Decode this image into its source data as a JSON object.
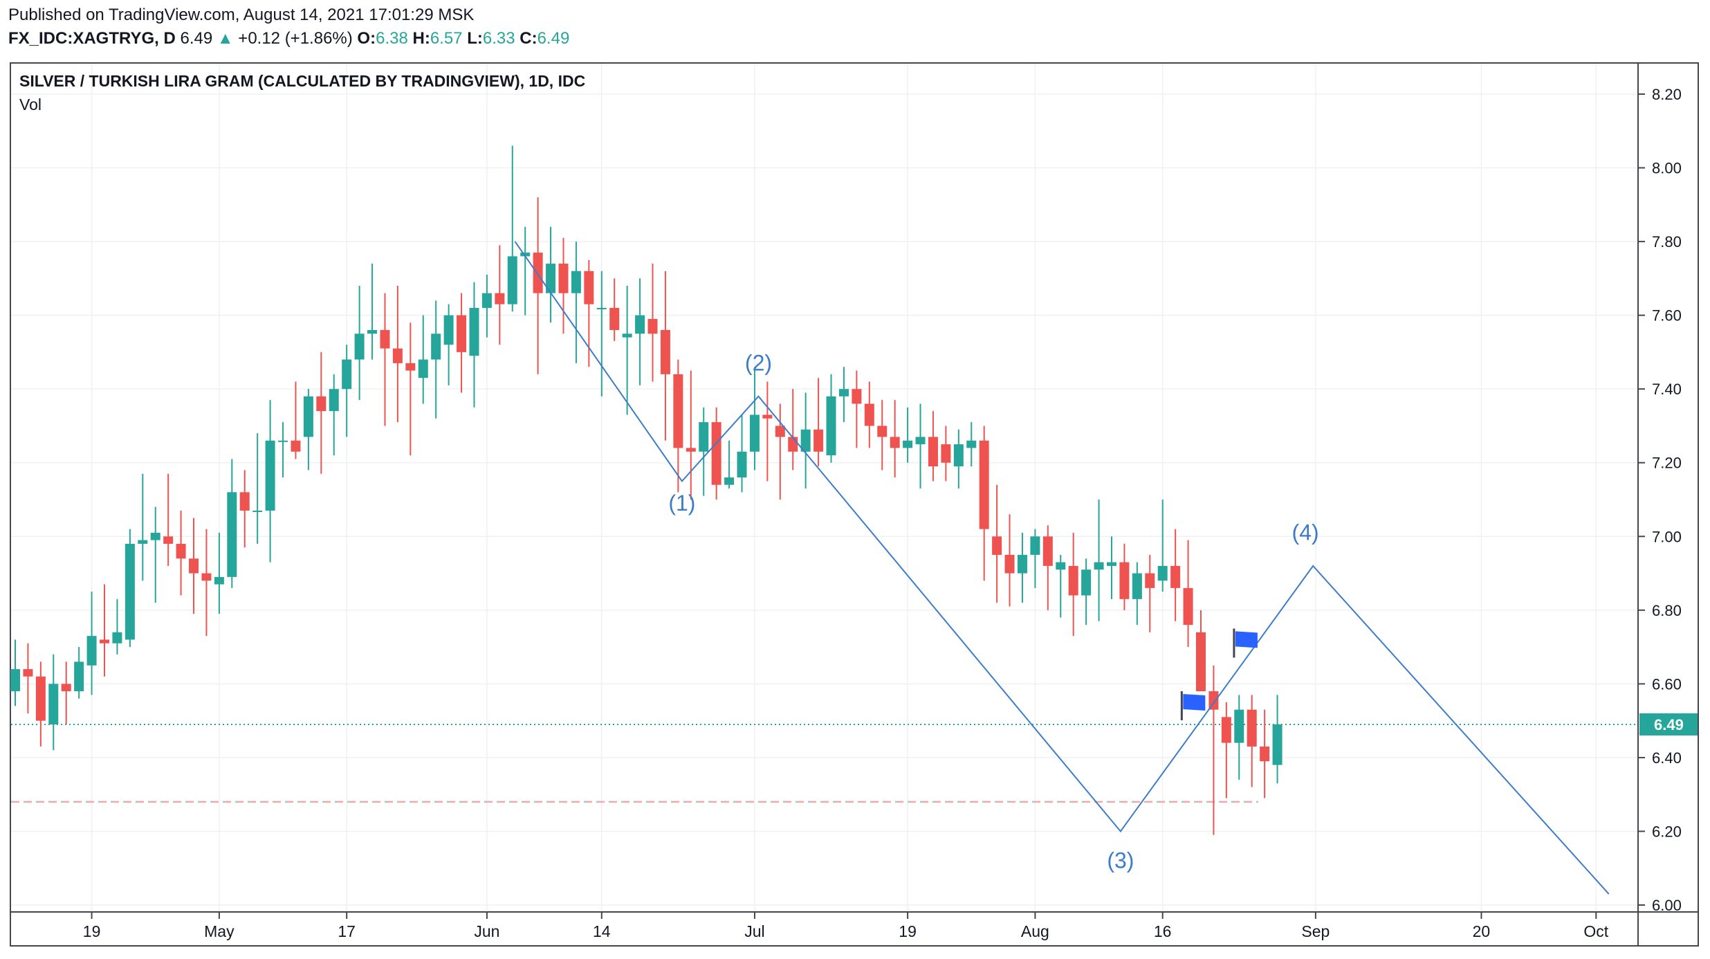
{
  "header": {
    "published": "Published on TradingView.com, August 14, 2021 17:01:29 MSK",
    "symbol": "FX_IDC:XAGTRYG, D",
    "last": "6.49",
    "change": "+0.12 (+1.86%)",
    "o_label": "O:",
    "o_value": "6.38",
    "h_label": "H:",
    "h_value": "6.57",
    "l_label": "L:",
    "l_value": "6.33",
    "c_label": "C:",
    "c_value": "6.49"
  },
  "chart_title": "SILVER / TURKISH LIRA GRAM (CALCULATED BY TRADINGVIEW), 1D, IDC",
  "volume_label": "Vol",
  "colors": {
    "up": "#26a69a",
    "down": "#ef5350",
    "line": "#3d7cc9",
    "flag": "#2962ff",
    "axis": "#434651"
  },
  "chart_data": {
    "type": "candlestick",
    "title": "SILVER / TURKISH LIRA GRAM (CALCULATED BY TRADINGVIEW), 1D, IDC",
    "ylim": [
      6.0,
      8.25
    ],
    "y_ticks": [
      "8.20",
      "8.00",
      "7.80",
      "7.60",
      "7.40",
      "7.20",
      "7.00",
      "6.80",
      "6.60",
      "6.40",
      "6.20",
      "6.00"
    ],
    "x_ticks": [
      {
        "label": "19",
        "t": 6
      },
      {
        "label": "May",
        "t": 16
      },
      {
        "label": "17",
        "t": 26
      },
      {
        "label": "Jun",
        "t": 37
      },
      {
        "label": "14",
        "t": 46
      },
      {
        "label": "Jul",
        "t": 58
      },
      {
        "label": "19",
        "t": 70
      },
      {
        "label": "Aug",
        "t": 80
      },
      {
        "label": "16",
        "t": 90
      },
      {
        "label": "Sep",
        "t": 102
      },
      {
        "label": "20",
        "t": 115
      },
      {
        "label": "Oct",
        "t": 124
      }
    ],
    "last_price": 6.49,
    "last_price_label": "6.49",
    "low_line": 6.28,
    "candles": [
      [
        6.58,
        6.72,
        6.54,
        6.64
      ],
      [
        6.64,
        6.71,
        6.52,
        6.62
      ],
      [
        6.62,
        6.66,
        6.43,
        6.5
      ],
      [
        6.49,
        6.68,
        6.42,
        6.6
      ],
      [
        6.6,
        6.66,
        6.49,
        6.58
      ],
      [
        6.58,
        6.7,
        6.56,
        6.66
      ],
      [
        6.65,
        6.85,
        6.57,
        6.73
      ],
      [
        6.72,
        6.87,
        6.62,
        6.71
      ],
      [
        6.71,
        6.83,
        6.68,
        6.74
      ],
      [
        6.72,
        7.02,
        6.7,
        6.98
      ],
      [
        6.98,
        7.17,
        6.88,
        6.99
      ],
      [
        6.99,
        7.08,
        6.82,
        7.01
      ],
      [
        7.0,
        7.17,
        6.92,
        6.98
      ],
      [
        6.98,
        7.07,
        6.84,
        6.94
      ],
      [
        6.94,
        7.05,
        6.79,
        6.9
      ],
      [
        6.9,
        7.02,
        6.73,
        6.88
      ],
      [
        6.87,
        7.01,
        6.79,
        6.89
      ],
      [
        6.89,
        7.21,
        6.86,
        7.12
      ],
      [
        7.12,
        7.18,
        6.97,
        7.07
      ],
      [
        7.07,
        7.28,
        6.98,
        7.07
      ],
      [
        7.07,
        7.37,
        6.93,
        7.26
      ],
      [
        7.26,
        7.31,
        7.16,
        7.26
      ],
      [
        7.26,
        7.42,
        7.21,
        7.23
      ],
      [
        7.27,
        7.4,
        7.18,
        7.38
      ],
      [
        7.38,
        7.5,
        7.17,
        7.34
      ],
      [
        7.34,
        7.44,
        7.22,
        7.4
      ],
      [
        7.4,
        7.52,
        7.27,
        7.48
      ],
      [
        7.48,
        7.68,
        7.37,
        7.55
      ],
      [
        7.55,
        7.74,
        7.48,
        7.56
      ],
      [
        7.56,
        7.66,
        7.3,
        7.51
      ],
      [
        7.51,
        7.68,
        7.31,
        7.47
      ],
      [
        7.47,
        7.58,
        7.22,
        7.45
      ],
      [
        7.43,
        7.6,
        7.36,
        7.48
      ],
      [
        7.48,
        7.64,
        7.32,
        7.55
      ],
      [
        7.52,
        7.63,
        7.41,
        7.6
      ],
      [
        7.6,
        7.66,
        7.39,
        7.5
      ],
      [
        7.49,
        7.69,
        7.35,
        7.62
      ],
      [
        7.62,
        7.71,
        7.54,
        7.66
      ],
      [
        7.66,
        7.79,
        7.52,
        7.63
      ],
      [
        7.63,
        8.06,
        7.61,
        7.76
      ],
      [
        7.76,
        7.84,
        7.6,
        7.77
      ],
      [
        7.77,
        7.92,
        7.44,
        7.66
      ],
      [
        7.66,
        7.84,
        7.58,
        7.74
      ],
      [
        7.74,
        7.81,
        7.55,
        7.66
      ],
      [
        7.66,
        7.8,
        7.47,
        7.72
      ],
      [
        7.72,
        7.75,
        7.46,
        7.63
      ],
      [
        7.62,
        7.72,
        7.38,
        7.62
      ],
      [
        7.62,
        7.7,
        7.53,
        7.56
      ],
      [
        7.54,
        7.68,
        7.33,
        7.55
      ],
      [
        7.55,
        7.7,
        7.41,
        7.6
      ],
      [
        7.59,
        7.74,
        7.42,
        7.55
      ],
      [
        7.56,
        7.72,
        7.26,
        7.44
      ],
      [
        7.44,
        7.48,
        7.12,
        7.24
      ],
      [
        7.24,
        7.45,
        7.1,
        7.23
      ],
      [
        7.23,
        7.35,
        7.11,
        7.31
      ],
      [
        7.31,
        7.35,
        7.1,
        7.14
      ],
      [
        7.14,
        7.26,
        7.13,
        7.16
      ],
      [
        7.16,
        7.33,
        7.12,
        7.23
      ],
      [
        7.23,
        7.46,
        7.18,
        7.33
      ],
      [
        7.33,
        7.42,
        7.15,
        7.32
      ],
      [
        7.3,
        7.36,
        7.1,
        7.27
      ],
      [
        7.27,
        7.4,
        7.18,
        7.23
      ],
      [
        7.23,
        7.39,
        7.13,
        7.29
      ],
      [
        7.29,
        7.43,
        7.19,
        7.23
      ],
      [
        7.22,
        7.44,
        7.2,
        7.38
      ],
      [
        7.38,
        7.46,
        7.31,
        7.4
      ],
      [
        7.4,
        7.45,
        7.24,
        7.36
      ],
      [
        7.36,
        7.42,
        7.24,
        7.3
      ],
      [
        7.3,
        7.37,
        7.18,
        7.27
      ],
      [
        7.27,
        7.37,
        7.16,
        7.24
      ],
      [
        7.24,
        7.35,
        7.2,
        7.26
      ],
      [
        7.25,
        7.36,
        7.13,
        7.27
      ],
      [
        7.27,
        7.34,
        7.15,
        7.19
      ],
      [
        7.25,
        7.3,
        7.15,
        7.2
      ],
      [
        7.19,
        7.29,
        7.13,
        7.25
      ],
      [
        7.24,
        7.31,
        7.19,
        7.26
      ],
      [
        7.26,
        7.3,
        6.88,
        7.02
      ],
      [
        7.0,
        7.14,
        6.82,
        6.95
      ],
      [
        6.95,
        7.06,
        6.81,
        6.9
      ],
      [
        6.9,
        7.01,
        6.82,
        6.95
      ],
      [
        6.95,
        7.02,
        6.86,
        7.0
      ],
      [
        7.0,
        7.03,
        6.8,
        6.92
      ],
      [
        6.91,
        6.95,
        6.78,
        6.93
      ],
      [
        6.92,
        7.01,
        6.73,
        6.84
      ],
      [
        6.84,
        6.94,
        6.76,
        6.91
      ],
      [
        6.91,
        7.1,
        6.77,
        6.93
      ],
      [
        6.92,
        7.0,
        6.83,
        6.93
      ],
      [
        6.93,
        6.98,
        6.8,
        6.83
      ],
      [
        6.83,
        6.93,
        6.76,
        6.9
      ],
      [
        6.9,
        6.95,
        6.74,
        6.86
      ],
      [
        6.88,
        7.1,
        6.85,
        6.92
      ],
      [
        6.92,
        7.02,
        6.77,
        6.86
      ],
      [
        6.86,
        6.99,
        6.7,
        6.76
      ],
      [
        6.74,
        6.8,
        6.58,
        6.58
      ],
      [
        6.58,
        6.65,
        6.19,
        6.53
      ],
      [
        6.51,
        6.55,
        6.29,
        6.44
      ],
      [
        6.44,
        6.57,
        6.34,
        6.53
      ],
      [
        6.53,
        6.57,
        6.32,
        6.43
      ],
      [
        6.43,
        6.53,
        6.29,
        6.39
      ],
      [
        6.38,
        6.57,
        6.33,
        6.49
      ]
    ],
    "wave_points": [
      {
        "t": 39.2,
        "y": 7.8
      },
      {
        "t": 52.3,
        "y": 7.15
      },
      {
        "t": 58.3,
        "y": 7.38
      },
      {
        "t": 86.7,
        "y": 6.2
      },
      {
        "t": 101.8,
        "y": 6.92
      },
      {
        "t": 125.0,
        "y": 6.03
      }
    ],
    "annotations": [
      {
        "text": "(1)",
        "t": 52.3,
        "y": 7.07
      },
      {
        "text": "(2)",
        "t": 58.3,
        "y": 7.45
      },
      {
        "text": "(3)",
        "t": 86.7,
        "y": 6.1
      },
      {
        "text": "(4)",
        "t": 101.2,
        "y": 6.99
      }
    ],
    "flags": [
      {
        "t": 91.5,
        "y": 6.55
      },
      {
        "t": 95.6,
        "y": 6.72
      }
    ]
  }
}
